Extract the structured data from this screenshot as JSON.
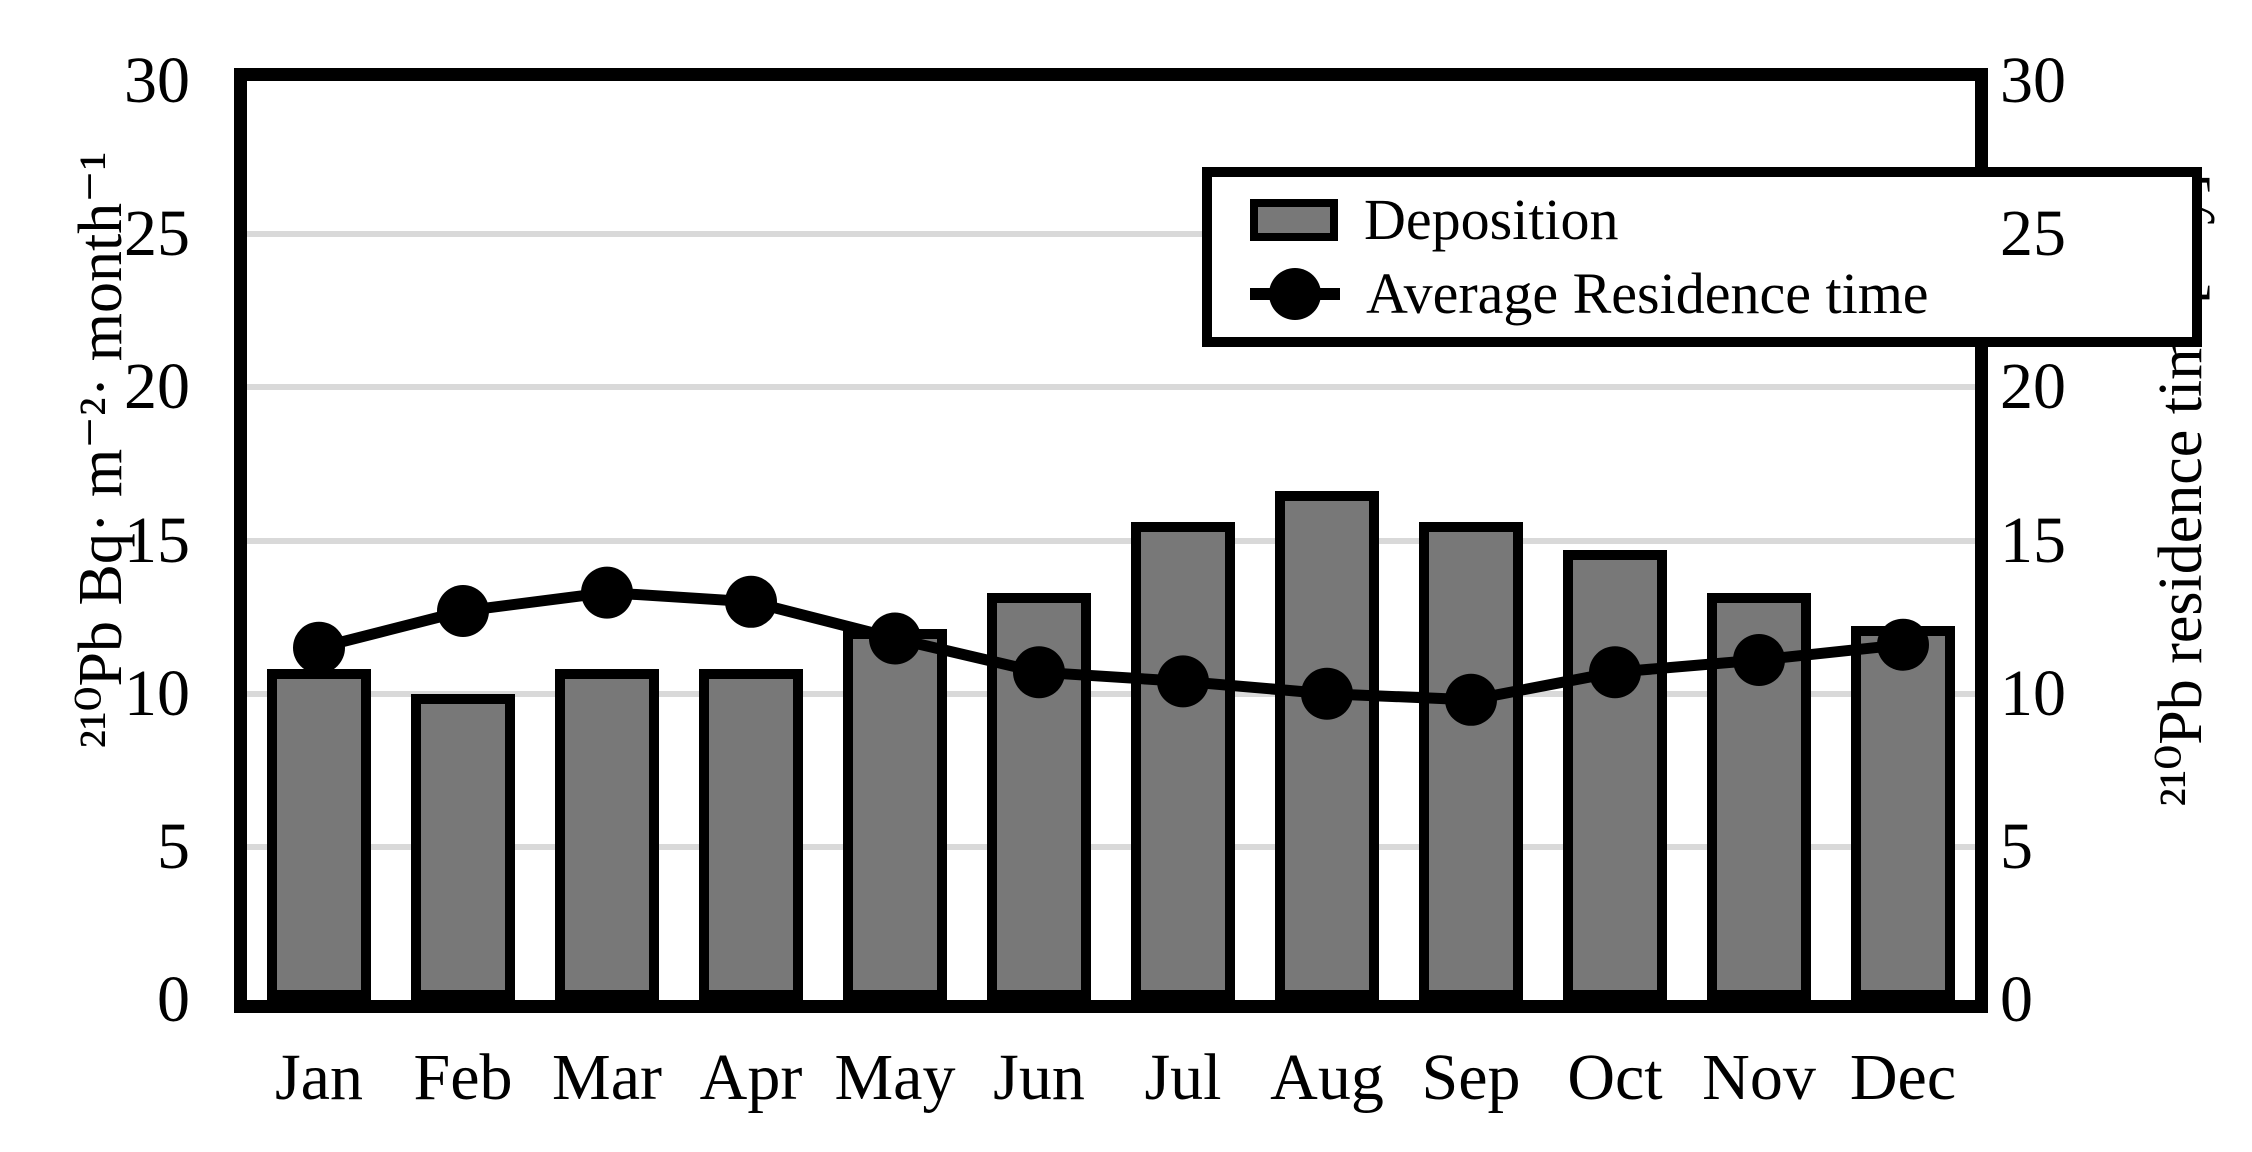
{
  "chart_data": {
    "type": "bar",
    "combo": "bar+line",
    "categories": [
      "Jan",
      "Feb",
      "Mar",
      "Apr",
      "May",
      "Jun",
      "Jul",
      "Aug",
      "Sep",
      "Oct",
      "Nov",
      "Dec"
    ],
    "series": [
      {
        "name": "Deposition",
        "type": "bar",
        "axis": "left",
        "values": [
          10.8,
          10.0,
          10.8,
          10.8,
          12.1,
          13.3,
          15.6,
          16.6,
          15.6,
          14.7,
          13.3,
          12.2
        ]
      },
      {
        "name": "Average Residence time",
        "type": "line",
        "axis": "right",
        "values": [
          11.5,
          12.7,
          13.3,
          13.0,
          11.8,
          10.7,
          10.4,
          10.0,
          9.8,
          10.7,
          11.1,
          11.6
        ]
      }
    ],
    "title": "",
    "xlabel": "",
    "left_axis": {
      "label": "²¹⁰Pb Bq· m⁻²· month⁻¹",
      "min": 0,
      "max": 30,
      "ticks": [
        0,
        5,
        10,
        15,
        20,
        25,
        30
      ]
    },
    "right_axis": {
      "label": "²¹⁰Pb residence time[day]",
      "min": 0,
      "max": 30,
      "ticks": [
        0,
        5,
        10,
        15,
        20,
        25,
        30
      ]
    },
    "grid": "horizontal major gridlines",
    "legend_position": "top-right inside plot"
  },
  "legend": {
    "items": [
      {
        "label": "Deposition",
        "swatch": "gray-bar"
      },
      {
        "label": "Average Residence time",
        "swatch": "black-line-marker"
      }
    ]
  },
  "colors": {
    "bar_fill": "#787878",
    "bar_border": "#000000",
    "line": "#000000",
    "marker": "#000000",
    "grid": "#d9d9d9",
    "axis_frame": "#000000",
    "background": "#ffffff",
    "text": "#000000"
  }
}
